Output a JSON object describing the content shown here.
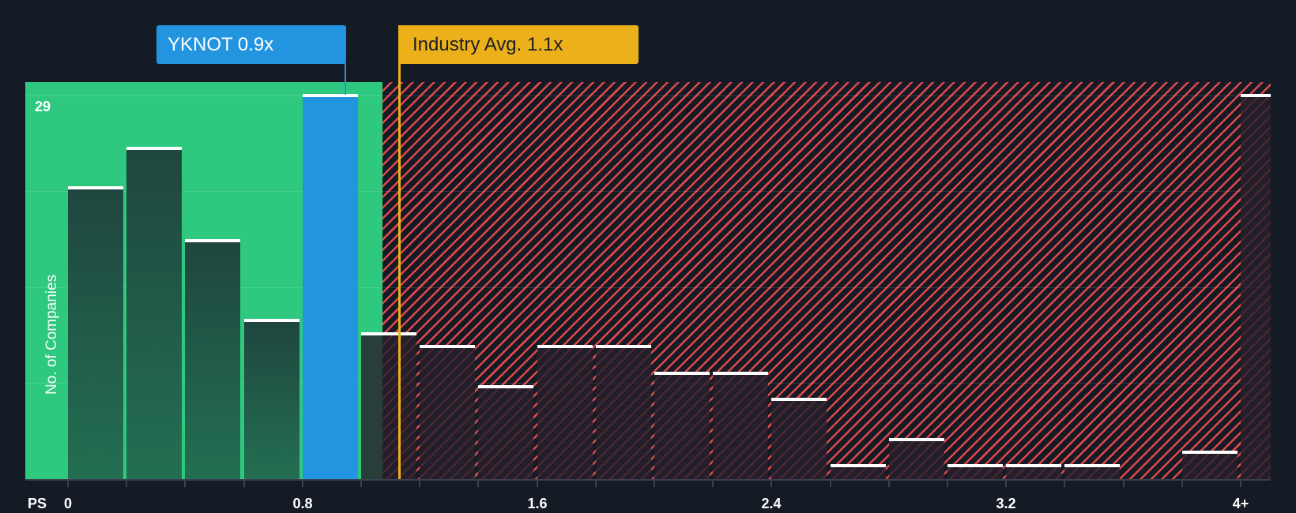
{
  "chart_data": {
    "type": "bar",
    "title": "",
    "xlabel": "PS",
    "ylabel": "No. of Companies",
    "ylim": [
      0,
      29
    ],
    "y_tick_label_max": "29",
    "x_tick_labels": [
      "0",
      "0.8",
      "1.6",
      "2.4",
      "3.2",
      "4+"
    ],
    "bin_width": 0.2,
    "categories": [
      "0-0.2",
      "0.2-0.4",
      "0.4-0.6",
      "0.6-0.8",
      "0.8-1.0",
      "1.0-1.2",
      "1.2-1.4",
      "1.4-1.6",
      "1.6-1.8",
      "1.8-2.0",
      "2.0-2.2",
      "2.2-2.4",
      "2.4-2.6",
      "2.6-2.8",
      "2.8-3.0",
      "3.0-3.2",
      "3.2-3.4",
      "3.4-3.6",
      "3.6-3.8",
      "3.8-4.0",
      "4+"
    ],
    "values": [
      22,
      25,
      18,
      12,
      29,
      11,
      10,
      7,
      10,
      10,
      8,
      8,
      6,
      1,
      3,
      1,
      1,
      1,
      0,
      2,
      29
    ],
    "highlight_index": 4,
    "annotations": [
      {
        "label": "YKNOT 0.9x",
        "x": 0.9,
        "color": "#2394e0"
      },
      {
        "label": "Industry Avg. 1.1x",
        "x": 1.1,
        "color": "#ecb11a"
      }
    ],
    "zones": {
      "undervalued_color": "#2ec97f",
      "overvalued_color": "#e0474c",
      "split_x": 1.1
    },
    "grid": true
  },
  "callouts": {
    "company": "YKNOT 0.9x",
    "industry": "Industry Avg. 1.1x"
  },
  "axis": {
    "x_title": "PS",
    "y_title": "No. of Companies",
    "y_max_label": "29"
  }
}
